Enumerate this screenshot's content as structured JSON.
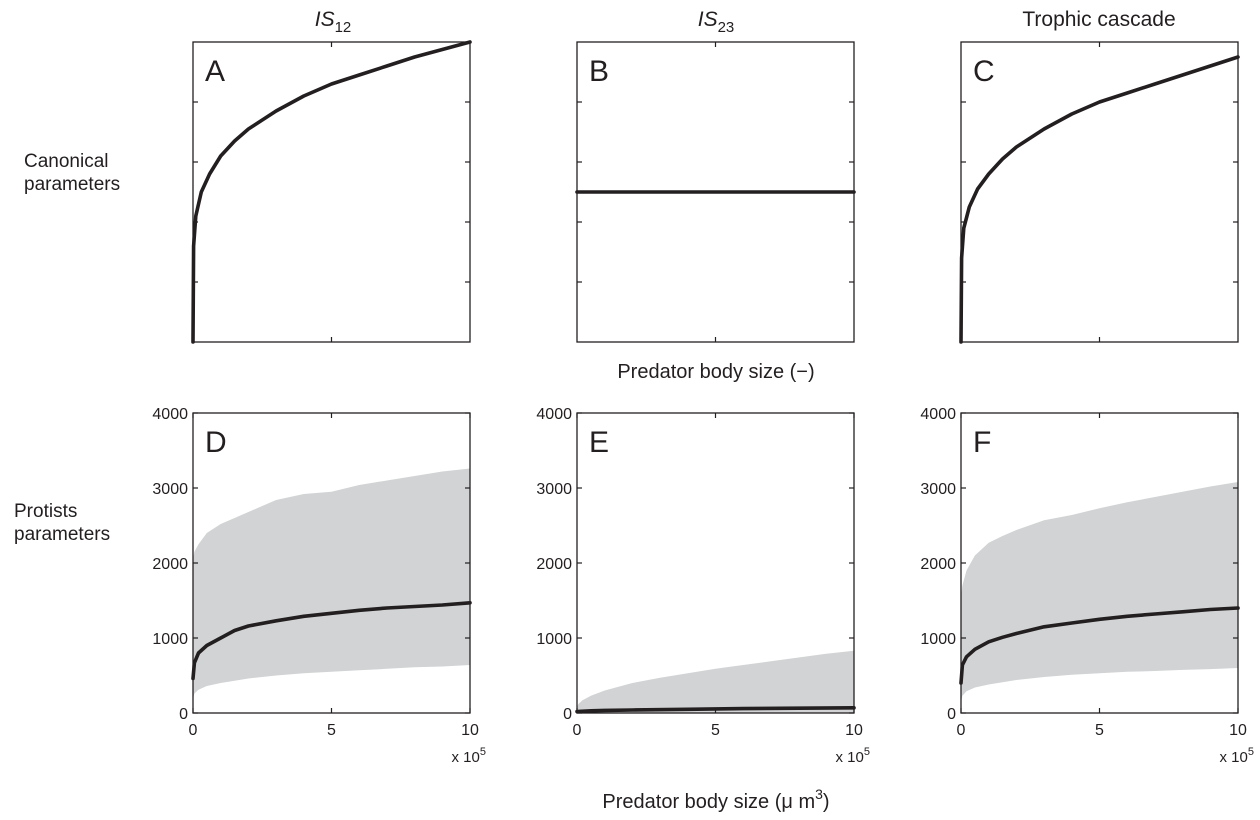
{
  "figure": {
    "x_axis_title_top": "Predator body size (−)",
    "x_axis_title_bottom_main": "Predator body size (",
    "x_axis_title_bottom_unit": "μ m",
    "x_axis_title_bottom_exp": "3",
    "x_axis_title_bottom_close": ")",
    "row_labels": [
      [
        "Canonical",
        "parameters"
      ],
      [
        "Protists",
        "parameters"
      ]
    ],
    "column_titles": [
      {
        "main": "IS",
        "sub": "12",
        "italic": true
      },
      {
        "main": "IS",
        "sub": "23",
        "italic": true
      },
      {
        "main": "Trophic cascade",
        "sub": "",
        "italic": false
      }
    ],
    "x_multiplier": {
      "base": "x 10",
      "exp": "5"
    }
  },
  "chart_data": [
    {
      "panel": "A",
      "type": "line",
      "row": "canonical",
      "xlim": [
        0,
        1
      ],
      "ylim": [
        0,
        1
      ],
      "x": [
        0,
        0.002,
        0.01,
        0.03,
        0.06,
        0.1,
        0.15,
        0.2,
        0.3,
        0.4,
        0.5,
        0.6,
        0.7,
        0.8,
        0.9,
        1.0
      ],
      "y": [
        0.0,
        0.32,
        0.42,
        0.5,
        0.56,
        0.62,
        0.67,
        0.71,
        0.77,
        0.82,
        0.86,
        0.89,
        0.92,
        0.95,
        0.975,
        1.0
      ],
      "x_ticks": [
        0.5
      ],
      "y_ticks": [
        0.2,
        0.4,
        0.6,
        0.8
      ],
      "tick_labels": false
    },
    {
      "panel": "B",
      "type": "line",
      "row": "canonical",
      "xlim": [
        0,
        1
      ],
      "ylim": [
        0,
        1
      ],
      "x": [
        0,
        1
      ],
      "y": [
        0.5,
        0.5
      ],
      "x_ticks": [
        0.5
      ],
      "y_ticks": [
        0.2,
        0.4,
        0.6,
        0.8
      ],
      "tick_labels": false
    },
    {
      "panel": "C",
      "type": "line",
      "row": "canonical",
      "xlim": [
        0,
        1
      ],
      "ylim": [
        0,
        1
      ],
      "x": [
        0,
        0.002,
        0.01,
        0.03,
        0.06,
        0.1,
        0.15,
        0.2,
        0.3,
        0.4,
        0.5,
        0.6,
        0.7,
        0.8,
        0.9,
        1.0
      ],
      "y": [
        0.0,
        0.28,
        0.38,
        0.45,
        0.51,
        0.56,
        0.61,
        0.65,
        0.71,
        0.76,
        0.8,
        0.83,
        0.86,
        0.89,
        0.92,
        0.95
      ],
      "x_ticks": [
        0.5
      ],
      "y_ticks": [
        0.2,
        0.4,
        0.6,
        0.8
      ],
      "tick_labels": false
    },
    {
      "panel": "D",
      "type": "area",
      "row": "protists",
      "xlim": [
        0,
        10
      ],
      "ylim": [
        0,
        4000
      ],
      "x_ticks": [
        0,
        5,
        10
      ],
      "y_ticks": [
        0,
        1000,
        2000,
        3000,
        4000
      ],
      "tick_labels": true,
      "series": [
        {
          "role": "median",
          "x": [
            0,
            0.05,
            0.2,
            0.5,
            1,
            1.5,
            2,
            3,
            4,
            5,
            6,
            7,
            8,
            9,
            10
          ],
          "y": [
            460,
            670,
            800,
            900,
            1000,
            1100,
            1160,
            1230,
            1290,
            1330,
            1370,
            1400,
            1420,
            1440,
            1470
          ]
        },
        {
          "role": "band_upper",
          "x": [
            0,
            0.05,
            0.2,
            0.5,
            1,
            1.5,
            2,
            3,
            4,
            5,
            6,
            7,
            8,
            9,
            10
          ],
          "y": [
            2050,
            2150,
            2250,
            2400,
            2520,
            2600,
            2680,
            2840,
            2920,
            2950,
            3040,
            3100,
            3160,
            3220,
            3260
          ]
        },
        {
          "role": "band_lower",
          "x": [
            0,
            0.05,
            0.2,
            0.5,
            1,
            1.5,
            2,
            3,
            4,
            5,
            6,
            7,
            8,
            9,
            10
          ],
          "y": [
            180,
            260,
            310,
            360,
            400,
            430,
            460,
            500,
            530,
            550,
            570,
            590,
            610,
            620,
            640
          ]
        }
      ]
    },
    {
      "panel": "E",
      "type": "area",
      "row": "protists",
      "xlim": [
        0,
        10
      ],
      "ylim": [
        0,
        4000
      ],
      "x_ticks": [
        0,
        5,
        10
      ],
      "y_ticks": [
        0,
        1000,
        2000,
        3000,
        4000
      ],
      "tick_labels": true,
      "series": [
        {
          "role": "median",
          "x": [
            0,
            0.5,
            1,
            2,
            4,
            6,
            8,
            10
          ],
          "y": [
            20,
            30,
            35,
            40,
            50,
            58,
            64,
            70
          ]
        },
        {
          "role": "band_upper",
          "x": [
            0,
            0.05,
            0.2,
            0.5,
            1,
            2,
            3,
            4,
            5,
            6,
            7,
            8,
            9,
            10
          ],
          "y": [
            80,
            120,
            170,
            230,
            300,
            400,
            470,
            530,
            590,
            640,
            690,
            740,
            790,
            830
          ]
        },
        {
          "role": "band_lower",
          "x": [
            0,
            10
          ],
          "y": [
            0,
            0
          ]
        }
      ]
    },
    {
      "panel": "F",
      "type": "area",
      "row": "protists",
      "xlim": [
        0,
        10
      ],
      "ylim": [
        0,
        4000
      ],
      "x_ticks": [
        0,
        5,
        10
      ],
      "y_ticks": [
        0,
        1000,
        2000,
        3000,
        4000
      ],
      "tick_labels": true,
      "series": [
        {
          "role": "median",
          "x": [
            0,
            0.05,
            0.2,
            0.5,
            1,
            1.5,
            2,
            3,
            4,
            5,
            6,
            7,
            8,
            9,
            10
          ],
          "y": [
            400,
            640,
            750,
            850,
            950,
            1010,
            1060,
            1150,
            1200,
            1250,
            1290,
            1320,
            1350,
            1380,
            1400
          ]
        },
        {
          "role": "band_upper",
          "x": [
            0,
            0.05,
            0.2,
            0.5,
            1,
            1.5,
            2,
            3,
            4,
            5,
            6,
            7,
            8,
            9,
            10
          ],
          "y": [
            1550,
            1700,
            1900,
            2100,
            2270,
            2360,
            2440,
            2570,
            2640,
            2730,
            2810,
            2880,
            2950,
            3020,
            3080
          ]
        },
        {
          "role": "band_lower",
          "x": [
            0,
            0.05,
            0.2,
            0.5,
            1,
            1.5,
            2,
            3,
            4,
            5,
            6,
            7,
            8,
            9,
            10
          ],
          "y": [
            150,
            230,
            290,
            340,
            380,
            410,
            440,
            480,
            510,
            530,
            550,
            560,
            575,
            585,
            600
          ]
        }
      ]
    }
  ]
}
